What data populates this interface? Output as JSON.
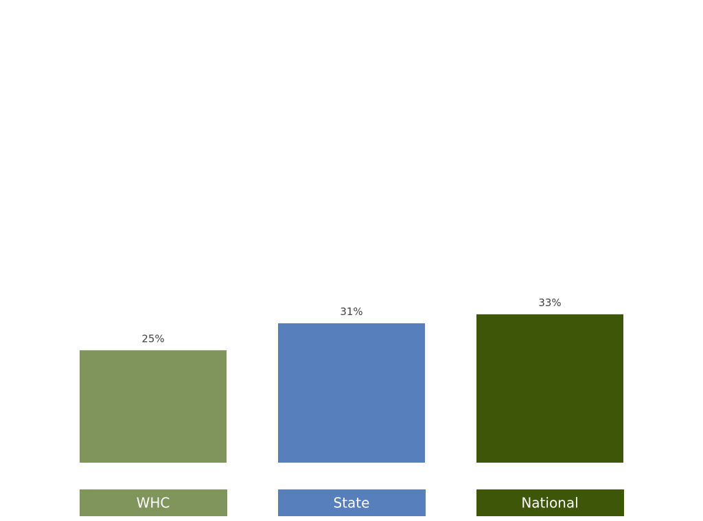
{
  "chart_data": {
    "type": "bar",
    "categories": [
      "WHC",
      "State",
      "National"
    ],
    "values": [
      25,
      31,
      33
    ],
    "value_labels": [
      "25%",
      "31%",
      "33%"
    ],
    "colors": [
      "#80955c",
      "#567fbb",
      "#3e5608"
    ],
    "label_text_color": "#ffffff",
    "value_text_color": "#404040",
    "legend_placement": "bottom",
    "grid": false,
    "ylim": [
      0,
      100
    ]
  }
}
